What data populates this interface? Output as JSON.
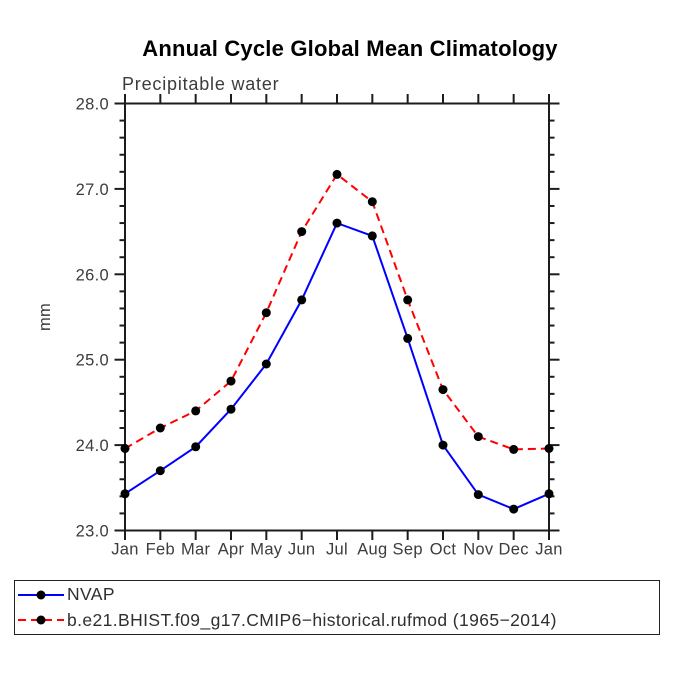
{
  "title": "Annual Cycle Global Mean Climatology",
  "chart_data": {
    "type": "line",
    "title": "Annual Cycle Global Mean Climatology",
    "subtitle": "Precipitable water",
    "ylabel": "mm",
    "xlabel": "",
    "ylim": [
      23.0,
      28.0
    ],
    "ytick_step": 1.0,
    "ytick_labels": [
      "23.0",
      "24.0",
      "25.0",
      "26.0",
      "27.0",
      "28.0"
    ],
    "minor_tick_step": 0.2,
    "grid": false,
    "legend_position": "bottom-left-box",
    "categories": [
      "Jan",
      "Feb",
      "Mar",
      "Apr",
      "May",
      "Jun",
      "Jul",
      "Aug",
      "Sep",
      "Oct",
      "Nov",
      "Dec",
      "Jan"
    ],
    "series": [
      {
        "name": "NVAP",
        "color": "#0000ff",
        "line_style": "solid",
        "marker": "filled-circle",
        "marker_color": "#000000",
        "values": [
          23.43,
          23.7,
          23.98,
          24.42,
          24.95,
          25.7,
          26.6,
          26.45,
          25.25,
          24.0,
          23.42,
          23.25,
          23.43
        ]
      },
      {
        "name": "b.e21.BHIST.f09_g17.CMIP6−historical.rufmod (1965−2014)",
        "color": "#ff0000",
        "line_style": "dashed",
        "marker": "filled-circle",
        "marker_color": "#000000",
        "values": [
          23.96,
          24.2,
          24.4,
          24.75,
          25.55,
          26.5,
          27.17,
          26.85,
          25.7,
          24.65,
          24.1,
          23.95,
          23.96
        ]
      }
    ]
  }
}
